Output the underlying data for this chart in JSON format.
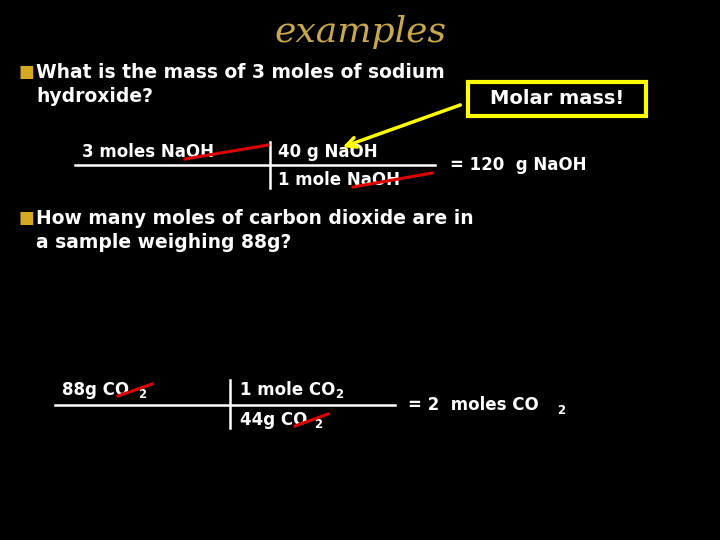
{
  "background_color": "#000000",
  "title": "examples",
  "title_color": "#c8a84b",
  "title_fontsize": 28,
  "bullet_color": "#d4a820",
  "bullet1_line1": "What is the mass of 3 moles of sodium",
  "bullet1_line2": "hydroxide?",
  "bullet2_line1": "How many moles of carbon dioxide are in",
  "bullet2_line2": "a sample weighing 88g?",
  "white_text_color": "#ffffff",
  "red_color": "#dd0000",
  "yellow_color": "#ffff00",
  "molar_mass_box_color": "#ffff00",
  "molar_mass_text": "Molar mass!",
  "eq1_result": "= 120  g NaOH",
  "eq2_result": "= 2  moles CO"
}
